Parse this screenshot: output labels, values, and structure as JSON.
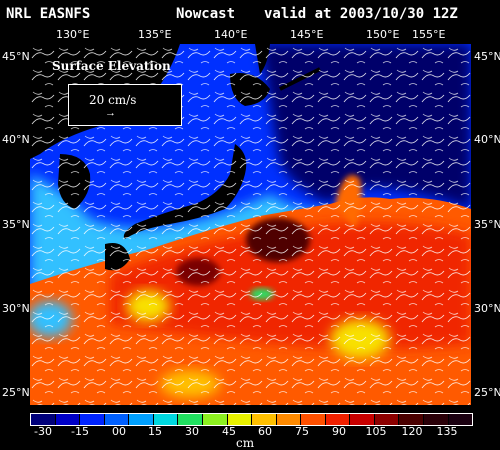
{
  "header": {
    "model": "NRL EASNFS",
    "product": "Nowcast",
    "valid": "valid at 2003/10/30 12Z"
  },
  "lon_labels": [
    "130°E",
    "135°E",
    "140°E",
    "145°E",
    "150°E",
    "155°E"
  ],
  "lat_labels_left": [
    "45°N",
    "40°N",
    "35°N",
    "30°N",
    "25°N"
  ],
  "lat_labels_right": [
    "45°N",
    "40°N",
    "35°N",
    "30°N",
    "25°N"
  ],
  "inset": {
    "title": "Surface Elevation",
    "scale_label": "20 cm/s",
    "arrow_glyph": "→"
  },
  "colorbar": {
    "ticks": [
      "-30",
      "-15",
      "00",
      "15",
      "30",
      "45",
      "60",
      "75",
      "90",
      "105",
      "120",
      "135"
    ],
    "unit": "cm",
    "colors": [
      "#00007a",
      "#0000c8",
      "#0024ff",
      "#0060ff",
      "#00a0ff",
      "#00d8e0",
      "#20e060",
      "#8cf020",
      "#e8f000",
      "#ffc000",
      "#ff8a00",
      "#ff5000",
      "#f02000",
      "#c80000",
      "#8c0000",
      "#4a0000",
      "#2a0008",
      "#1a0010"
    ]
  },
  "field_colors": {
    "land": "#000000",
    "deep_low": "#00006a",
    "low": "#0018d0",
    "mid_low": "#0050ff",
    "coastal": "#30c0ff",
    "green": "#30d860",
    "orange": "#ff7000",
    "red": "#f02800",
    "dark_red": "#500000",
    "yellow": "#f8e000"
  }
}
